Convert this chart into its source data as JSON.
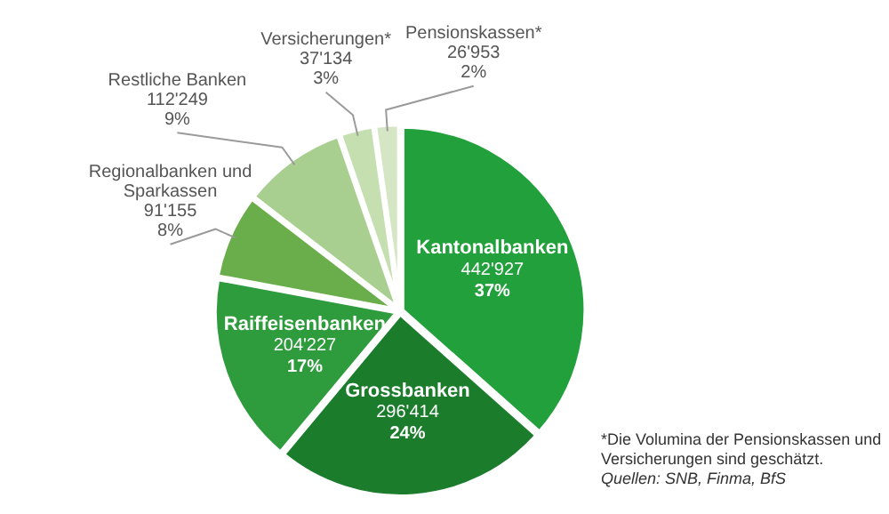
{
  "chart_data": {
    "type": "pie",
    "categories": [
      "Kantonalbanken",
      "Grossbanken",
      "Raiffeisenbanken",
      "Regionalbanken und Sparkassen",
      "Restliche Banken",
      "Versicherungen*",
      "Pensionskassen*"
    ],
    "values": [
      442927,
      296414,
      204227,
      91155,
      112249,
      37134,
      26953
    ],
    "value_labels": [
      "442'927\n37%",
      "296'414\n24%",
      "204'227\n17%",
      "91'155\n8%",
      "112'249\n9%",
      "37'134\n3%",
      "26'953\n2%"
    ],
    "colors": [
      "#22a03c",
      "#1b7d2b",
      "#2e9b3c",
      "#6aae4c",
      "#a8cf90",
      "#c5dfb0",
      "#d5e6c5"
    ],
    "legend": false,
    "annotations": [
      "*Die Volumina der Pensionskassen und Versicherungen sind geschätzt.",
      "Quellen: SNB, Finma, BfS"
    ]
  }
}
